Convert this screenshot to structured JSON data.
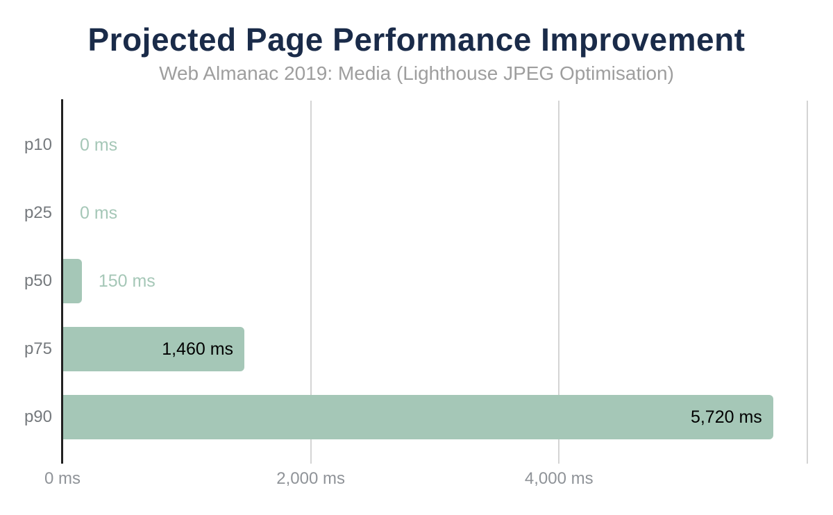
{
  "page": {
    "background": "#ffffff"
  },
  "chart_data": {
    "type": "bar",
    "orientation": "horizontal",
    "title": "Projected Page Performance Improvement",
    "subtitle": "Web Almanac 2019: Media (Lighthouse JPEG Optimisation)",
    "categories": [
      "p10",
      "p25",
      "p50",
      "p75",
      "p90"
    ],
    "values": [
      0,
      0,
      150,
      1460,
      5720
    ],
    "value_labels": [
      "0 ms",
      "0 ms",
      "150 ms",
      "1,460 ms",
      "5,720 ms"
    ],
    "unit": "ms",
    "xlabel": "",
    "ylabel": "",
    "xlim": [
      0,
      6040
    ],
    "xticks": [
      {
        "value": 0,
        "label": "0 ms"
      },
      {
        "value": 2000,
        "label": "2,000 ms"
      },
      {
        "value": 4000,
        "label": "4,000 ms"
      },
      {
        "value": 6000,
        "label": ""
      }
    ],
    "grid": "vertical-only",
    "legend": "none",
    "colors": {
      "bar": "#a5c7b7",
      "title": "#1a2b49",
      "subtitle": "#9e9e9e",
      "y_axis_labels": "#75797d",
      "x_axis_labels": "#8f9398",
      "value_label_outside": "#a5c7b7",
      "value_label_inside": "#000000",
      "gridline": "#d4d4d4",
      "axis_line": "#212121",
      "background": "#ffffff"
    }
  }
}
